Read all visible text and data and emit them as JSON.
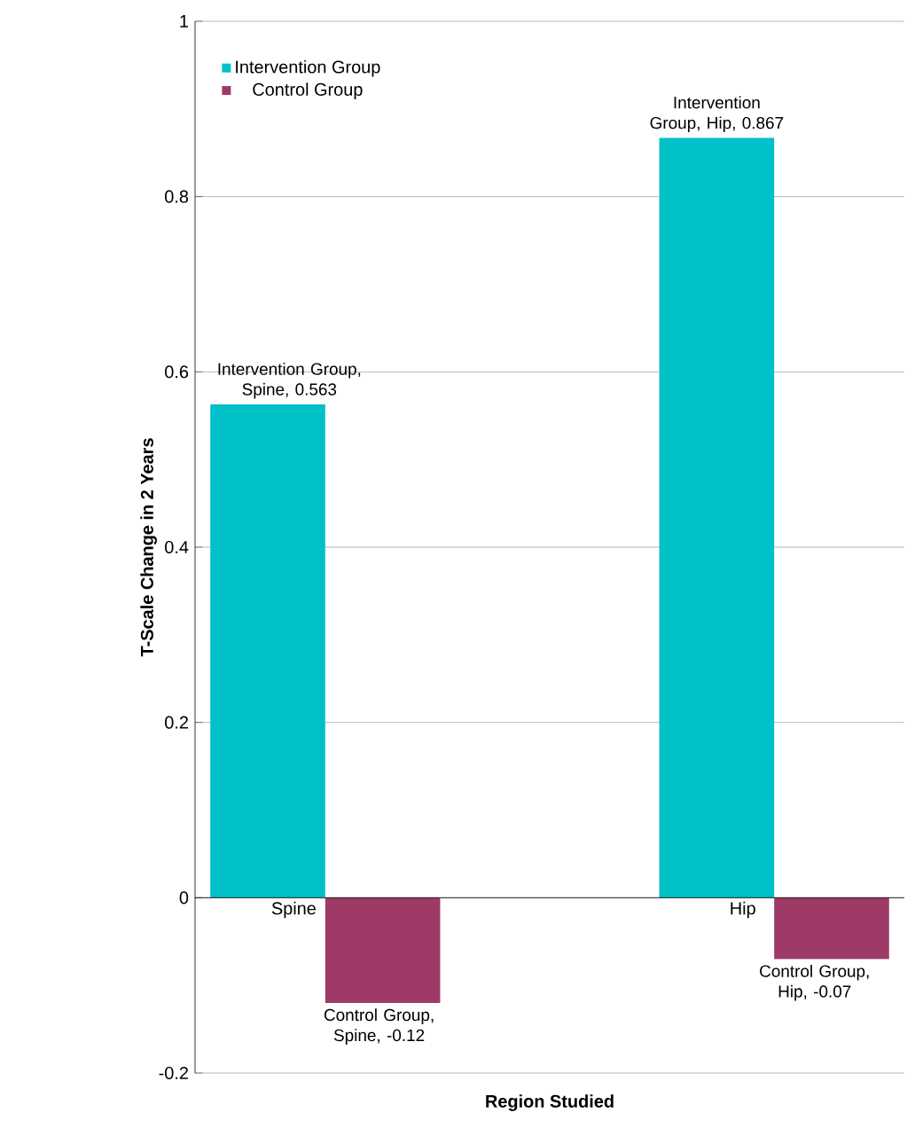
{
  "chart_data": {
    "type": "bar",
    "xlabel": "Region Studied",
    "ylabel": "T-Scale Change in 2 Years",
    "categories": [
      "Spine",
      "Hip"
    ],
    "series": [
      {
        "name": "Intervention Group",
        "color": "#00c0c8",
        "values": [
          0.563,
          0.867
        ],
        "value_labels": [
          "Intervention Group, Spine, 0.563",
          "Intervention Group, Hip, 0.867"
        ]
      },
      {
        "name": "Control Group",
        "color": "#9e3a68",
        "values": [
          -0.12,
          -0.07
        ],
        "value_labels": [
          "Control Group, Spine, -0.12",
          "Control Group, Hip, -0.07"
        ]
      }
    ],
    "ylim": [
      -0.2,
      1
    ],
    "yticks": [
      -0.2,
      0,
      0.2,
      0.4,
      0.6,
      0.8,
      1
    ],
    "grid": "y",
    "legend": "top left"
  }
}
